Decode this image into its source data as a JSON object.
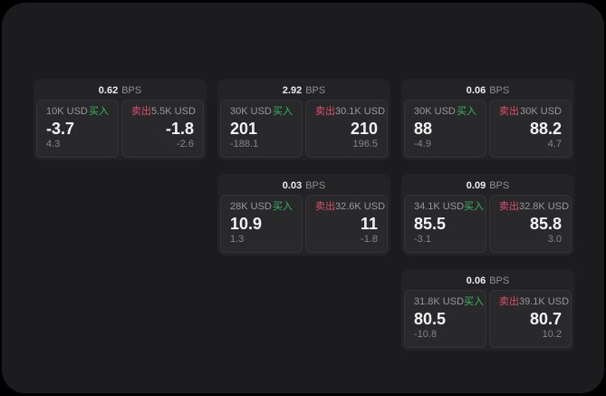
{
  "labels": {
    "bps_unit": "BPS",
    "buy": "买入",
    "sell": "卖出"
  },
  "colors": {
    "page_bg": "#1c1c1e",
    "card_bg": "#232325",
    "panel_bg": "#29292c",
    "buy": "#34b95e",
    "sell": "#e04e6b"
  },
  "cards": [
    {
      "bps": "0.62",
      "buy": {
        "amount": "10K USD",
        "price": "-3.7",
        "delta": "4.3"
      },
      "sell": {
        "amount": "5.5K USD",
        "price": "-1.8",
        "delta": "-2.6"
      }
    },
    {
      "bps": "2.92",
      "buy": {
        "amount": "30K USD",
        "price": "201",
        "delta": "-188.1"
      },
      "sell": {
        "amount": "30.1K USD",
        "price": "210",
        "delta": "196.5"
      }
    },
    {
      "bps": "0.06",
      "buy": {
        "amount": "30K USD",
        "price": "88",
        "delta": "-4.9"
      },
      "sell": {
        "amount": "30K USD",
        "price": "88.2",
        "delta": "4.7"
      }
    },
    {
      "bps": "0.03",
      "buy": {
        "amount": "28K USD",
        "price": "10.9",
        "delta": "1.3"
      },
      "sell": {
        "amount": "32.6K USD",
        "price": "11",
        "delta": "-1.8"
      }
    },
    {
      "bps": "0.09",
      "buy": {
        "amount": "34.1K USD",
        "price": "85.5",
        "delta": "-3.1"
      },
      "sell": {
        "amount": "32.8K USD",
        "price": "85.8",
        "delta": "3.0"
      }
    },
    {
      "bps": "0.06",
      "buy": {
        "amount": "31.8K USD",
        "price": "80.5",
        "delta": "-10.8"
      },
      "sell": {
        "amount": "39.1K USD",
        "price": "80.7",
        "delta": "10.2"
      }
    }
  ]
}
